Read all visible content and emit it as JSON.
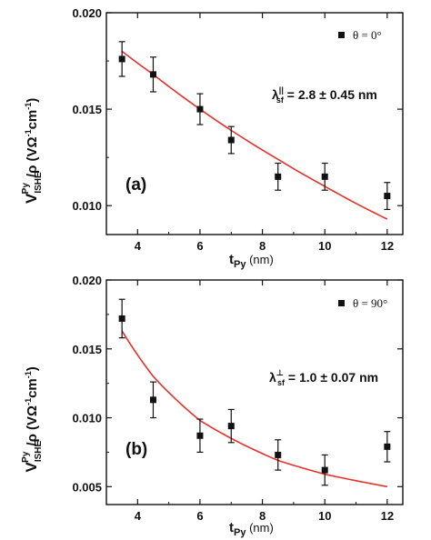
{
  "chart_data": [
    {
      "type": "scatter",
      "panel_label": "(a)",
      "x": [
        3.5,
        4.5,
        6,
        7,
        8.5,
        10,
        12
      ],
      "y": [
        0.0176,
        0.0168,
        0.015,
        0.0134,
        0.0115,
        0.0115,
        0.0105
      ],
      "y_err": [
        0.0009,
        0.0009,
        0.0008,
        0.0007,
        0.0007,
        0.0007,
        0.0007
      ],
      "fit_curve": {
        "x": [
          3.5,
          4.5,
          6,
          7,
          8.5,
          10,
          12
        ],
        "y": [
          0.018,
          0.0168,
          0.015,
          0.0139,
          0.0124,
          0.011,
          0.0093
        ],
        "color": "#e8302a"
      },
      "xlim": [
        3.0,
        12.5
      ],
      "ylim": [
        0.0085,
        0.02
      ],
      "x_ticks": [
        "4",
        "6",
        "8",
        "10",
        "12"
      ],
      "y_ticks": [
        "0.010",
        "0.015",
        "0.020"
      ],
      "y_tick_values": [
        0.01,
        0.015,
        0.02
      ],
      "x_tick_values": [
        4,
        6,
        8,
        10,
        12
      ],
      "legend": {
        "symbol_label": "θ = 0°"
      },
      "annotation": {
        "lambda": "λ",
        "superscript": "||",
        "subscript": "sf",
        "value": " = 2.8 ± 0.45 nm"
      },
      "xlabel": {
        "main": "t",
        "sub": "Py",
        "unit": " (nm)"
      },
      "ylabel": {
        "main": "V",
        "sub": "ISHE",
        "sup": "Py",
        "rest": "/ρ (VΩ",
        "sup2": "-1",
        "rest2": "cm",
        "sup3": "-1",
        "close": ")"
      },
      "marker_color": "#111111"
    },
    {
      "type": "scatter",
      "panel_label": "(b)",
      "x": [
        3.5,
        4.5,
        6,
        7,
        8.5,
        10,
        12
      ],
      "y": [
        0.0172,
        0.0113,
        0.0087,
        0.0094,
        0.0073,
        0.0062,
        0.0079
      ],
      "y_err": [
        0.0014,
        0.0013,
        0.0012,
        0.0012,
        0.0011,
        0.0011,
        0.0011
      ],
      "fit_curve": {
        "x": [
          3.5,
          4.5,
          6,
          7,
          8.5,
          10,
          12
        ],
        "y": [
          0.0163,
          0.013,
          0.0098,
          0.0085,
          0.0069,
          0.0059,
          0.005
        ],
        "color": "#e8302a"
      },
      "xlim": [
        3.0,
        12.5
      ],
      "ylim": [
        0.0037,
        0.02
      ],
      "x_ticks": [
        "4",
        "6",
        "8",
        "10",
        "12"
      ],
      "y_ticks": [
        "0.005",
        "0.010",
        "0.015",
        "0.020"
      ],
      "y_tick_values": [
        0.005,
        0.01,
        0.015,
        0.02
      ],
      "x_tick_values": [
        4,
        6,
        8,
        10,
        12
      ],
      "legend": {
        "symbol_label": "θ = 90°"
      },
      "annotation": {
        "lambda": "λ",
        "superscript": "⊥",
        "subscript": "sf",
        "value": " = 1.0 ± 0.07 nm"
      },
      "xlabel": {
        "main": "t",
        "sub": "Py",
        "unit": " (nm)"
      },
      "ylabel": {
        "main": "V",
        "sub": "ISHE",
        "sup": "Py",
        "rest": "/ρ (VΩ",
        "sup2": "-1",
        "rest2": "cm",
        "sup3": "-1",
        "close": ")"
      },
      "marker_color": "#111111"
    }
  ]
}
